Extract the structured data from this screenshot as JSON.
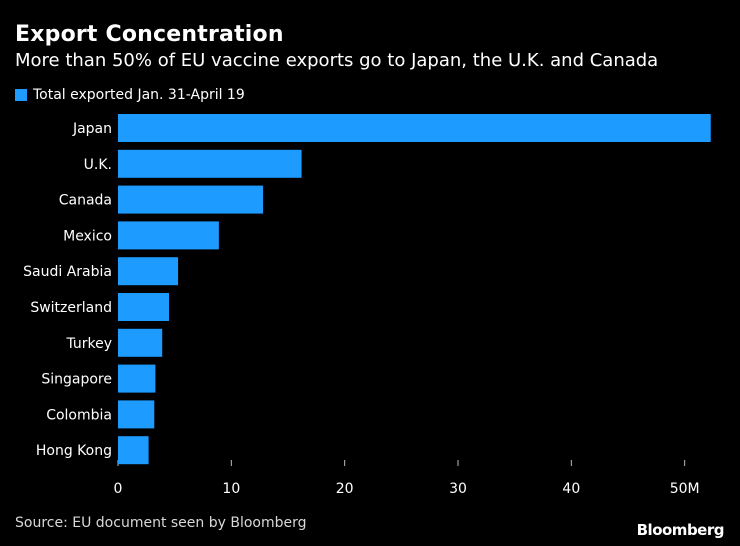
{
  "title": "Export Concentration",
  "subtitle": "More than 50% of EU vaccine exports go to Japan, the U.K. and Canada",
  "source": "Source: EU document seen by Bloomberg",
  "brand": "Bloomberg",
  "colors": {
    "bar": "#1e9bff",
    "background": "#000000"
  },
  "chart_data": {
    "type": "bar",
    "orientation": "horizontal",
    "categories": [
      "Japan",
      "U.K.",
      "Canada",
      "Mexico",
      "Saudi Arabia",
      "Switzerland",
      "Turkey",
      "Singapore",
      "Colombia",
      "Hong Kong"
    ],
    "series": [
      {
        "name": "Total exported Jan. 31-April 19",
        "values": [
          52.3,
          16.2,
          12.8,
          8.9,
          5.3,
          4.5,
          3.9,
          3.3,
          3.2,
          2.7
        ]
      }
    ],
    "xlim": [
      0,
      52.5
    ],
    "xticks": [
      {
        "value": 0,
        "label": "0"
      },
      {
        "value": 10,
        "label": "10"
      },
      {
        "value": 20,
        "label": "20"
      },
      {
        "value": 30,
        "label": "30"
      },
      {
        "value": 40,
        "label": "40"
      },
      {
        "value": 50,
        "label": "50M"
      }
    ],
    "title": "Export Concentration",
    "xlabel": "",
    "ylabel": "",
    "legend_position": "top-left"
  }
}
